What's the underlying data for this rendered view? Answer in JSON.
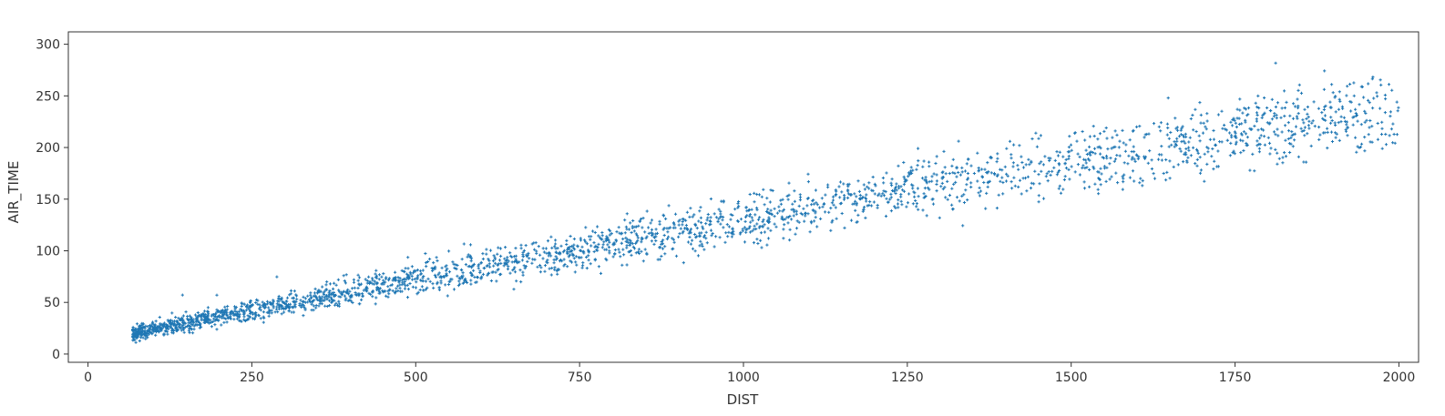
{
  "chart_data": {
    "type": "scatter",
    "title": "",
    "xlabel": "DIST",
    "ylabel": "AIR_TIME",
    "xlim": [
      -30,
      2030
    ],
    "ylim": [
      -8,
      312
    ],
    "xticks": [
      0,
      250,
      500,
      750,
      1000,
      1250,
      1500,
      1750,
      2000
    ],
    "yticks": [
      0,
      50,
      100,
      150,
      200,
      250,
      300
    ],
    "grid": false,
    "marker": "+",
    "color": "#1f77b4",
    "trend": {
      "description": "AIR_TIME increases roughly linearly with DIST",
      "points": [
        {
          "x": 70,
          "y": 20
        },
        {
          "x": 250,
          "y": 42
        },
        {
          "x": 500,
          "y": 72
        },
        {
          "x": 750,
          "y": 100
        },
        {
          "x": 1000,
          "y": 130
        },
        {
          "x": 1250,
          "y": 160
        },
        {
          "x": 1500,
          "y": 185
        },
        {
          "x": 1750,
          "y": 215
        },
        {
          "x": 2000,
          "y": 240
        }
      ]
    },
    "x_range": [
      68,
      2000
    ],
    "y_range": [
      8,
      298
    ]
  }
}
